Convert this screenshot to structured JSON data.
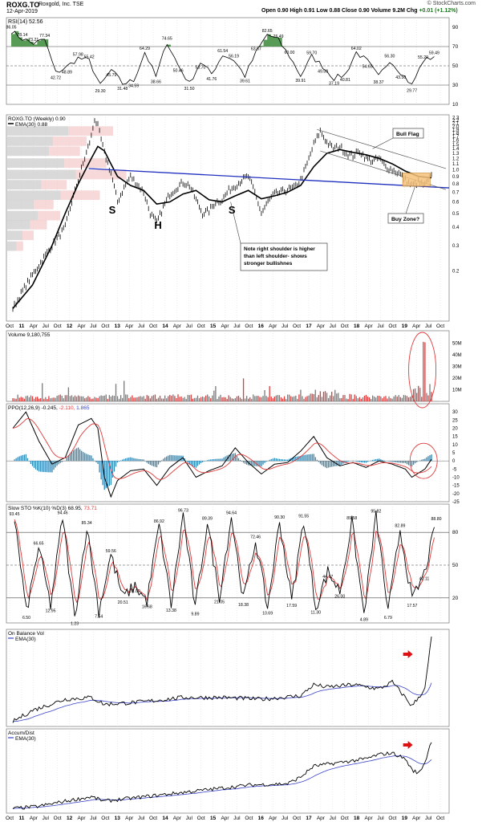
{
  "header": {
    "symbol": "ROXG.TO",
    "company": "Roxgold, Inc. TSE",
    "date": "12-Apr-2019",
    "open_label": "Open",
    "open": "0.90",
    "high_label": "High",
    "high": "0.91",
    "low_label": "Low",
    "low": "0.88",
    "close_label": "Close",
    "close": "0.90",
    "volume_label": "Volume",
    "volume": "9.2M",
    "chg_label": "Chg",
    "chg": "+0.01 (+1.12%)",
    "credit": "© StockCharts.com"
  },
  "colors": {
    "price": "#000000",
    "ema": "#000000",
    "trendline": "#1f2fbf",
    "flag_lines": "#555555",
    "buy_zone_fill": "#f6c27a",
    "buy_zone_stroke": "#c98a2c",
    "volume_up": "#7a7a7a",
    "volume_down": "#e03a3a",
    "ppo_hist": "#2d86b4",
    "signal_red": "#e03a3a",
    "obv_ema": "#3a44c8",
    "arrow": "#e01010",
    "rsi_fill": "#3a8a3a",
    "grid": "#d8d8d8",
    "highlight_circle": "#e03a3a"
  },
  "x_axis": {
    "labels": [
      "Oct",
      "11",
      "Apr",
      "Jul",
      "Oct",
      "12",
      "Apr",
      "Jul",
      "Oct",
      "13",
      "Apr",
      "Jul",
      "Oct",
      "14",
      "Apr",
      "Jul",
      "Oct",
      "15",
      "Apr",
      "Jul",
      "Oct",
      "16",
      "Apr",
      "Jul",
      "Oct",
      "17",
      "Apr",
      "Jul",
      "Oct",
      "18",
      "Apr",
      "Jul",
      "Oct",
      "19",
      "Apr",
      "Jul",
      "Oct"
    ]
  },
  "chart_data": [
    {
      "type": "line",
      "title": "RSI(14) 52.56",
      "indicator_label": "RSI(14)",
      "value": 52.56,
      "ylim": [
        10,
        100
      ],
      "yticks": [
        10,
        30,
        50,
        70,
        90
      ],
      "reference_lines": [
        30,
        50,
        70
      ],
      "annotations": [
        86.05,
        78.14,
        73.21,
        77.34,
        42.72,
        48.89,
        57.98,
        55.42,
        29.3,
        45.79,
        31.48,
        34.59,
        64.29,
        38.66,
        74.65,
        50.46,
        31.5,
        53.7,
        41.76,
        61.54,
        56.19,
        39.61,
        63.67,
        82.65,
        76.49,
        60.0,
        39.91,
        59.7,
        49.5,
        37.19,
        40.81,
        64.02,
        54.65,
        38.37,
        56.3,
        43.5,
        29.77,
        55.2,
        59.49
      ]
    },
    {
      "type": "line",
      "title": "ROXG.TO (Weekly) 0.90",
      "series": [
        {
          "name": "ROXG.TO (Weekly) 0.90",
          "role": "price"
        },
        {
          "name": "EMA(30) 0.88",
          "role": "ema"
        }
      ],
      "scale": "log",
      "ylim": [
        0.09,
        2.4
      ],
      "yticks": [
        0.2,
        0.3,
        0.4,
        0.5,
        0.6,
        0.7,
        0.8,
        0.9,
        1.0,
        1.1,
        1.2,
        1.3,
        1.4,
        1.5,
        1.6,
        1.7,
        1.8,
        1.9,
        2.0,
        2.1,
        2.2,
        2.3
      ],
      "price_points": [
        [
          0,
          0.11
        ],
        [
          2,
          0.16
        ],
        [
          4,
          0.22
        ],
        [
          6,
          0.3
        ],
        [
          8,
          0.4
        ],
        [
          9,
          0.6
        ],
        [
          10,
          0.85
        ],
        [
          11,
          1.2
        ],
        [
          12,
          1.7
        ],
        [
          12.5,
          2.25
        ],
        [
          13,
          2.0
        ],
        [
          14,
          1.3
        ],
        [
          15,
          0.95
        ],
        [
          16,
          0.6
        ],
        [
          17,
          0.75
        ],
        [
          18,
          0.9
        ],
        [
          19,
          0.8
        ],
        [
          20,
          0.7
        ],
        [
          21,
          0.5
        ],
        [
          22,
          0.43
        ],
        [
          23,
          0.55
        ],
        [
          24,
          0.68
        ],
        [
          25,
          0.75
        ],
        [
          26,
          0.82
        ],
        [
          27,
          0.78
        ],
        [
          28,
          0.62
        ],
        [
          29,
          0.5
        ],
        [
          30,
          0.52
        ],
        [
          31,
          0.6
        ],
        [
          32,
          0.62
        ],
        [
          33,
          0.72
        ],
        [
          34,
          0.78
        ],
        [
          35,
          0.85
        ],
        [
          36,
          0.9
        ],
        [
          37,
          0.7
        ],
        [
          38,
          0.5
        ],
        [
          39,
          0.6
        ],
        [
          40,
          0.68
        ],
        [
          41,
          0.7
        ],
        [
          42,
          0.73
        ],
        [
          43,
          0.75
        ],
        [
          44,
          0.85
        ],
        [
          45,
          1.1
        ],
        [
          46,
          1.5
        ],
        [
          47,
          1.85
        ],
        [
          48,
          1.55
        ],
        [
          49,
          1.4
        ],
        [
          50,
          1.45
        ],
        [
          51,
          1.3
        ],
        [
          52,
          1.25
        ],
        [
          53,
          1.35
        ],
        [
          54,
          1.2
        ],
        [
          55,
          1.15
        ],
        [
          56,
          1.2
        ],
        [
          57,
          1.05
        ],
        [
          58,
          1.0
        ],
        [
          59,
          0.95
        ],
        [
          60,
          0.85
        ],
        [
          61,
          0.78
        ],
        [
          62,
          0.82
        ],
        [
          63,
          0.78
        ],
        [
          64,
          0.9
        ]
      ],
      "ema_points": [
        [
          0,
          0.11
        ],
        [
          3,
          0.16
        ],
        [
          6,
          0.3
        ],
        [
          8,
          0.5
        ],
        [
          10,
          0.8
        ],
        [
          12,
          1.2
        ],
        [
          13,
          1.45
        ],
        [
          14,
          1.35
        ],
        [
          15,
          1.1
        ],
        [
          16,
          0.9
        ],
        [
          18,
          0.78
        ],
        [
          20,
          0.72
        ],
        [
          22,
          0.58
        ],
        [
          24,
          0.6
        ],
        [
          26,
          0.68
        ],
        [
          28,
          0.72
        ],
        [
          30,
          0.62
        ],
        [
          32,
          0.6
        ],
        [
          34,
          0.66
        ],
        [
          36,
          0.72
        ],
        [
          38,
          0.63
        ],
        [
          40,
          0.66
        ],
        [
          42,
          0.7
        ],
        [
          44,
          0.78
        ],
        [
          46,
          1.05
        ],
        [
          48,
          1.3
        ],
        [
          50,
          1.38
        ],
        [
          52,
          1.32
        ],
        [
          54,
          1.27
        ],
        [
          56,
          1.2
        ],
        [
          58,
          1.1
        ],
        [
          60,
          0.98
        ],
        [
          62,
          0.9
        ],
        [
          64,
          0.88
        ]
      ],
      "annotations": [
        {
          "text": "S"
        },
        {
          "text": "H"
        },
        {
          "text": "S"
        },
        {
          "text": "Note right shoulder is higher than left shoulder- shows stronger bullishnes",
          "lines": [
            "Note right shoulder is higher",
            "than left shoulder- shows",
            "stronger bullishnes"
          ]
        },
        {
          "text": "Bull Flag"
        },
        {
          "text": "Buy Zone?"
        }
      ]
    },
    {
      "type": "bar",
      "title": "Volume 9,180,755",
      "yticks_labels": [
        "10M",
        "20M",
        "30M",
        "40M",
        "50M"
      ],
      "ylim": [
        0,
        55
      ],
      "unit": "M",
      "highlight": "Volume spike in 2019 circled in red"
    },
    {
      "type": "line",
      "title": "PPO(12,26,9) -0.245, -2.110, 1.865",
      "title_parts": {
        "name": "PPO(12,26,9)",
        "ppo": "-0.245",
        "signal": "-2.110",
        "hist": "1.865"
      },
      "ylim": [
        -25,
        35
      ],
      "yticks": [
        -25,
        -20,
        -15,
        -10,
        -5,
        0,
        5,
        10,
        15,
        20,
        25,
        30
      ]
    },
    {
      "type": "line",
      "title": "Slow STO %K(10) %D(3) 68.95, 73.71",
      "title_parts": {
        "name": "Slow STO %K(10) %D(3)",
        "k": "68.95",
        "d": "73.71"
      },
      "ylim": [
        0,
        100
      ],
      "yticks": [
        20,
        50,
        80
      ],
      "annotations": [
        93.45,
        66.65,
        94.46,
        85.34,
        59.56,
        31.0,
        86.92,
        96.73,
        89.39,
        94.64,
        72.46,
        90.3,
        91.55,
        89.58,
        95.82,
        82.89,
        88.8,
        44.17,
        42.11,
        6.5,
        12.95,
        1.23,
        7.54,
        20.51,
        16.68,
        13.38,
        9.89,
        21.05,
        18.38,
        10.69,
        17.59,
        11.3,
        26.0,
        4.89,
        6.79,
        17.57
      ]
    },
    {
      "type": "line",
      "title": "On Balance Vol",
      "series": [
        {
          "name": "On Balance Vol"
        },
        {
          "name": "EMA(30)"
        }
      ]
    },
    {
      "type": "line",
      "title": "Accum/Dist",
      "series": [
        {
          "name": "Accum/Dist"
        },
        {
          "name": "EMA(30)"
        }
      ]
    }
  ]
}
